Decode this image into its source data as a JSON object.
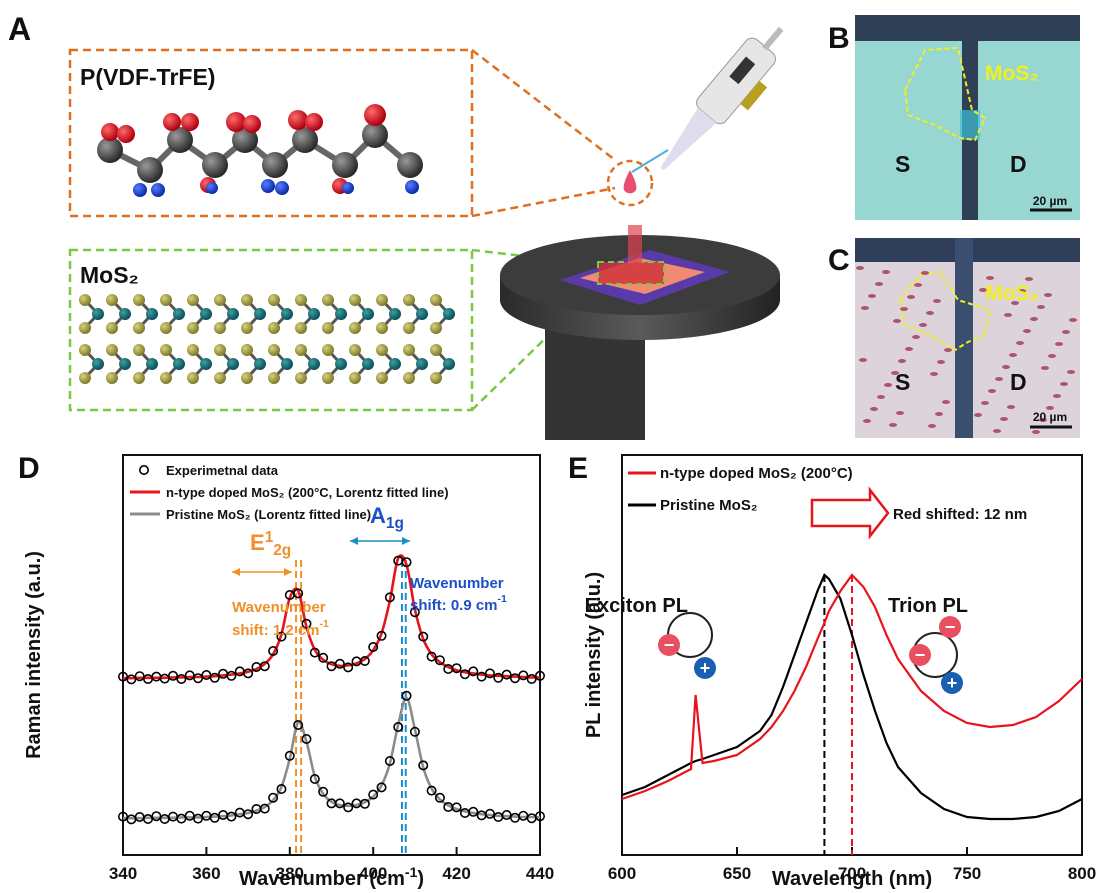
{
  "panels": {
    "A": {
      "label": "A",
      "polymer": "P(VDF-TrFE)",
      "material": "MoS₂"
    },
    "B": {
      "label": "B",
      "material": "MoS₂",
      "source": "S",
      "drain": "D",
      "scale": "20 µm"
    },
    "C": {
      "label": "C",
      "material": "MoS₂",
      "source": "S",
      "drain": "D",
      "scale": "20 µm"
    }
  },
  "chart_data": [
    {
      "label": "D",
      "type": "line",
      "xlabel": {
        "text": "Wavenumber (cm",
        "sup": "-1",
        "tail": ")"
      },
      "ylabel": "Raman intensity (a.u.)",
      "xlim": [
        340,
        440
      ],
      "xticks": [
        340,
        360,
        380,
        400,
        420,
        440
      ],
      "ylim": [
        0,
        100
      ],
      "x": [
        340,
        342,
        344,
        346,
        348,
        350,
        352,
        354,
        356,
        358,
        360,
        362,
        364,
        366,
        368,
        370,
        372,
        374,
        376,
        378,
        380,
        382,
        384,
        386,
        388,
        390,
        392,
        394,
        396,
        398,
        400,
        402,
        404,
        406,
        408,
        410,
        412,
        414,
        416,
        418,
        420,
        422,
        424,
        426,
        428,
        430,
        432,
        434,
        436,
        438,
        440
      ],
      "series": [
        {
          "name": "Experimetnal data",
          "color": "#000000",
          "style": "markers",
          "values": [
            44.6,
            43.9,
            44.7,
            44.0,
            44.6,
            44.1,
            44.8,
            44.0,
            44.9,
            44.2,
            45.0,
            44.3,
            45.3,
            44.8,
            45.9,
            45.4,
            47.0,
            47.2,
            51.0,
            54.6,
            65.0,
            65.4,
            57.8,
            50.6,
            49.3,
            47.2,
            47.8,
            46.9,
            48.4,
            48.5,
            52.0,
            54.8,
            64.4,
            73.6,
            73.2,
            60.7,
            54.6,
            49.6,
            48.7,
            46.5,
            46.7,
            45.2,
            45.9,
            44.6,
            45.4,
            44.3,
            45.1,
            44.2,
            44.9,
            44.0,
            44.8
          ]
        },
        {
          "color": "#000000",
          "style": "markers",
          "values": [
            9.6,
            8.9,
            9.5,
            9.0,
            9.7,
            9.0,
            9.6,
            9.1,
            9.8,
            9.1,
            9.8,
            9.3,
            10.0,
            9.6,
            10.6,
            10.2,
            11.5,
            11.6,
            14.3,
            16.5,
            24.8,
            32.5,
            29.0,
            19.0,
            15.8,
            12.9,
            12.9,
            11.9,
            12.9,
            12.8,
            15.1,
            16.9,
            23.5,
            32.0,
            39.8,
            30.8,
            22.4,
            16.1,
            14.3,
            12.0,
            11.9,
            10.5,
            10.8,
            9.9,
            10.3,
            9.5,
            10.0,
            9.3,
            9.8,
            9.2,
            9.7
          ]
        },
        {
          "name": "n-type doped MoS₂ (200°C, Lorentz fitted line)",
          "color": "#e8141b",
          "style": "line",
          "values": [
            44.2,
            44.2,
            44.3,
            44.3,
            44.3,
            44.3,
            44.4,
            44.4,
            44.5,
            44.5,
            44.6,
            44.7,
            44.9,
            45.1,
            45.4,
            45.8,
            46.5,
            47.8,
            50.2,
            55.2,
            64.3,
            66.1,
            57.0,
            51.3,
            48.8,
            47.7,
            47.3,
            47.4,
            47.9,
            49.0,
            51.2,
            55.4,
            63.6,
            74.2,
            72.5,
            61.4,
            54.0,
            50.2,
            48.2,
            47.0,
            46.2,
            45.7,
            45.4,
            45.1,
            44.9,
            44.8,
            44.7,
            44.6,
            44.5,
            44.4,
            44.4
          ]
        },
        {
          "name": "Pristine MoS₂ (Lorentz fitted line)",
          "color": "#8c8c8c",
          "style": "line",
          "values": [
            9.2,
            9.2,
            9.2,
            9.3,
            9.3,
            9.3,
            9.3,
            9.4,
            9.4,
            9.4,
            9.5,
            9.6,
            9.7,
            9.9,
            10.2,
            10.5,
            11.1,
            12.0,
            13.7,
            17.0,
            24.1,
            33.2,
            28.3,
            19.6,
            15.3,
            13.3,
            12.5,
            12.3,
            12.5,
            13.2,
            14.6,
            17.4,
            22.9,
            32.6,
            39.3,
            31.4,
            21.9,
            16.6,
            13.9,
            12.4,
            11.5,
            10.9,
            10.5,
            10.2,
            10.0,
            9.8,
            9.7,
            9.6,
            9.5,
            9.5,
            9.4
          ]
        }
      ],
      "vlines": [
        {
          "x": 381.5,
          "color": "#f0902a"
        },
        {
          "x": 382.7,
          "color": "#f0902a"
        },
        {
          "x": 406.9,
          "color": "#1a8fc9"
        },
        {
          "x": 407.8,
          "color": "#1a8fc9"
        }
      ],
      "annotations": {
        "e2g": {
          "base": "E",
          "sup": "1",
          "sub": "2g"
        },
        "a1g": {
          "base": "A",
          "sub": "1g"
        },
        "shift_e": {
          "line1": "Wavenumber",
          "line2": "shift: 1.2 cm",
          "sup": "-1"
        },
        "shift_a": {
          "line1": "Wavenumber",
          "line2": "shift: 0.9 cm",
          "sup": "-1"
        }
      }
    },
    {
      "label": "E",
      "type": "line",
      "xlabel": "Wavelength (nm)",
      "ylabel": "PL intensity (a.u.)",
      "xlim": [
        600,
        800
      ],
      "xticks": [
        600,
        650,
        700,
        750,
        800
      ],
      "ylim": [
        0,
        100
      ],
      "x": [
        600,
        610,
        620,
        630,
        632,
        635,
        640,
        650,
        660,
        665,
        670,
        675,
        680,
        685,
        688,
        690,
        695,
        700,
        705,
        710,
        715,
        720,
        730,
        740,
        750,
        760,
        770,
        780,
        790,
        800
      ],
      "series": [
        {
          "name": "n-type doped MoS₂ (200°C)",
          "color": "#e8141b",
          "style": "line",
          "values": [
            14,
            16,
            18.5,
            21.5,
            40,
            23,
            23.5,
            25,
            29,
            32,
            36,
            41,
            47,
            54,
            58,
            61,
            66,
            70,
            67,
            62,
            55,
            49,
            41,
            36,
            33,
            32,
            32.5,
            34.5,
            38.5,
            44
          ]
        },
        {
          "name": "Pristine MoS₂",
          "color": "#000000",
          "style": "line",
          "values": [
            15,
            17,
            20,
            23,
            23.5,
            24,
            25,
            27,
            31,
            35,
            42,
            50,
            58,
            66,
            70,
            69,
            64,
            55,
            45,
            36,
            28,
            22,
            15.5,
            11.5,
            9.5,
            9,
            9,
            9.5,
            11,
            14
          ]
        }
      ],
      "vlines": [
        {
          "x": 688,
          "color": "#000000"
        },
        {
          "x": 700,
          "color": "#e8141b"
        }
      ],
      "annotations": {
        "shift": "Red shifted: 12 nm",
        "exciton": "Exciton PL",
        "trion": "Trion PL"
      }
    }
  ]
}
